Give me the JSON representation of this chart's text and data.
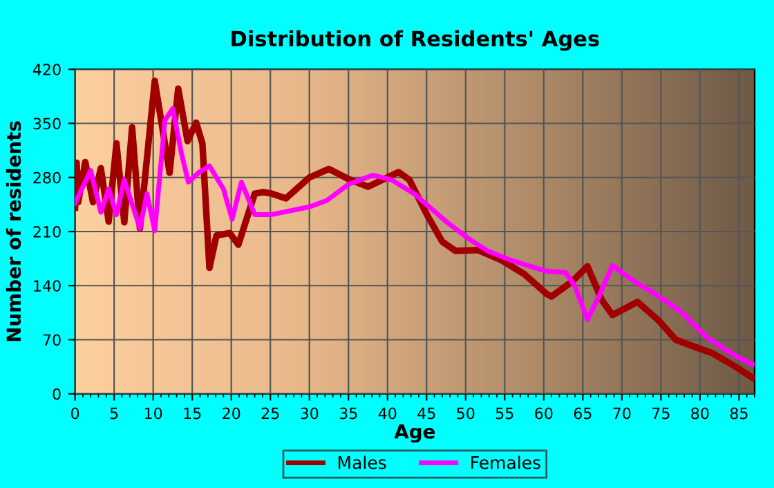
{
  "chart_data": {
    "type": "line",
    "title": "Distribution of Residents' Ages",
    "xlabel": "Age",
    "ylabel": "Number of residents",
    "xlim": [
      0,
      87
    ],
    "xticks": [
      0,
      5,
      10,
      15,
      20,
      25,
      30,
      35,
      40,
      45,
      50,
      55,
      60,
      65,
      70,
      75,
      80,
      85
    ],
    "ylim": [
      0,
      420
    ],
    "yticks": [
      0,
      70,
      140,
      210,
      280,
      350,
      420
    ],
    "grid": true,
    "legend": "bottom",
    "marker": "none",
    "line_style": "solid",
    "series": [
      {
        "name": "Males",
        "color": "#a00000",
        "x": [
          0,
          0.2,
          0.4,
          1.3,
          2.3,
          3.3,
          4.3,
          5.3,
          6.3,
          7.3,
          8.3,
          10.2,
          12.1,
          13.2,
          14.4,
          15.5,
          16.3,
          17.2,
          18.1,
          19.8,
          20.9,
          23,
          24.1,
          25.2,
          27,
          30,
          32.5,
          35,
          37.5,
          41.4,
          42.8,
          45.2,
          47,
          48.7,
          51.6,
          54.6,
          57.5,
          60.4,
          61,
          63.6,
          65.6,
          67.4,
          68.8,
          72,
          74.6,
          76.9,
          79.8,
          81.5,
          84.4,
          86.7
        ],
        "values": [
          241,
          299,
          248,
          300,
          248,
          292,
          223,
          324,
          222,
          345,
          214,
          405,
          286,
          395,
          327,
          351,
          324,
          163,
          205,
          208,
          193,
          259,
          261,
          259,
          253,
          280,
          291,
          278,
          268,
          287,
          277,
          229,
          197,
          185,
          186,
          173,
          155,
          129,
          126,
          145,
          165,
          122,
          102,
          119,
          96,
          70,
          59,
          53,
          36,
          21
        ]
      },
      {
        "name": "Females",
        "color": "#ff00ff",
        "x": [
          0,
          2,
          3.3,
          4.3,
          5.3,
          6.3,
          8.3,
          9.2,
          10.2,
          11.5,
          12.5,
          13.6,
          14.5,
          15.8,
          17.2,
          19,
          20.1,
          21.3,
          23,
          25.2,
          30,
          32.2,
          35,
          38.1,
          40.5,
          43.4,
          47.5,
          50.5,
          52.8,
          55.8,
          60.2,
          62.8,
          64,
          65.6,
          67.1,
          68.8,
          71.7,
          74.6,
          77.5,
          80.9,
          84.4,
          86.7
        ],
        "values": [
          247,
          289,
          235,
          265,
          232,
          277,
          214,
          259,
          211,
          354,
          369,
          312,
          274,
          286,
          295,
          265,
          226,
          274,
          232,
          232,
          242,
          250,
          271,
          283,
          277,
          259,
          223,
          200,
          185,
          173,
          159,
          157,
          139,
          96,
          127,
          166,
          145,
          127,
          107,
          73,
          50,
          38
        ]
      }
    ]
  }
}
